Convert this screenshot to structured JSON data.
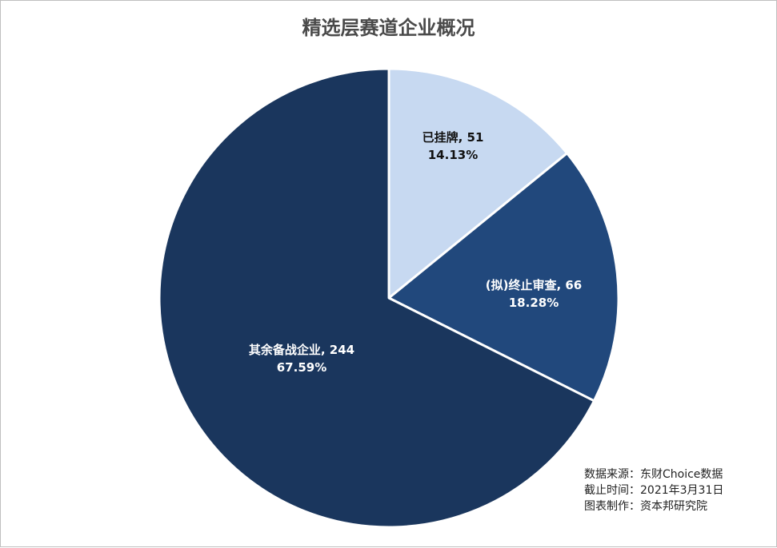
{
  "chart_data": {
    "type": "pie",
    "title": "精选层赛道企业概况",
    "slices": [
      {
        "label": "已挂牌",
        "value": 51,
        "percent": "14.13%",
        "display": "已挂牌, 51",
        "color": "#c7d9f1",
        "text_color": "#111111"
      },
      {
        "label": "(拟)终止审查",
        "value": 66,
        "percent": "18.28%",
        "display": "(拟)终止审查, 66",
        "color": "#21487c",
        "text_color": "#ffffff"
      },
      {
        "label": "其余备战企业",
        "value": 244,
        "percent": "67.59%",
        "display": "其余备战企业, 244",
        "color": "#1a365d",
        "text_color": "#ffffff"
      }
    ],
    "start_angle": "12 o'clock",
    "direction": "clockwise"
  },
  "source_note": {
    "data_source": "数据来源：东财Choice数据",
    "cutoff": "截止时间：2021年3月31日",
    "made_by": "图表制作：资本邦研究院"
  }
}
